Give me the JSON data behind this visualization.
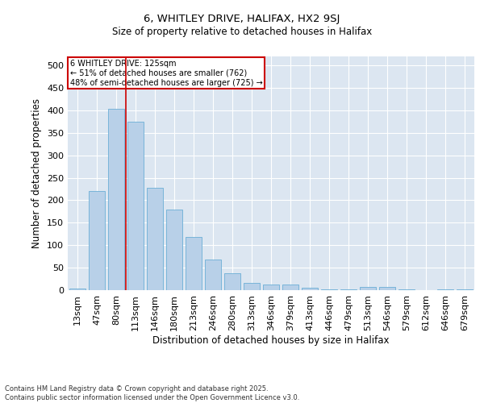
{
  "title_line1": "6, WHITLEY DRIVE, HALIFAX, HX2 9SJ",
  "title_line2": "Size of property relative to detached houses in Halifax",
  "xlabel": "Distribution of detached houses by size in Halifax",
  "ylabel": "Number of detached properties",
  "categories": [
    "13sqm",
    "47sqm",
    "80sqm",
    "113sqm",
    "146sqm",
    "180sqm",
    "213sqm",
    "246sqm",
    "280sqm",
    "313sqm",
    "346sqm",
    "379sqm",
    "413sqm",
    "446sqm",
    "479sqm",
    "513sqm",
    "546sqm",
    "579sqm",
    "612sqm",
    "646sqm",
    "679sqm"
  ],
  "values": [
    3,
    220,
    403,
    375,
    228,
    180,
    118,
    68,
    38,
    17,
    13,
    12,
    6,
    2,
    1,
    7,
    7,
    1,
    0,
    1,
    1
  ],
  "bar_color": "#b8d0e8",
  "bar_edge_color": "#6baed6",
  "bg_color": "#dce6f1",
  "grid_color": "#ffffff",
  "annotation_line1": "6 WHITLEY DRIVE: 125sqm",
  "annotation_line2": "← 51% of detached houses are smaller (762)",
  "annotation_line3": "48% of semi-detached houses are larger (725) →",
  "annotation_box_color": "#ffffff",
  "annotation_box_edge_color": "#cc0000",
  "vline_color": "#cc0000",
  "vline_index": 3,
  "footer_text": "Contains HM Land Registry data © Crown copyright and database right 2025.\nContains public sector information licensed under the Open Government Licence v3.0.",
  "ylim": [
    0,
    520
  ],
  "yticks": [
    0,
    50,
    100,
    150,
    200,
    250,
    300,
    350,
    400,
    450,
    500
  ]
}
